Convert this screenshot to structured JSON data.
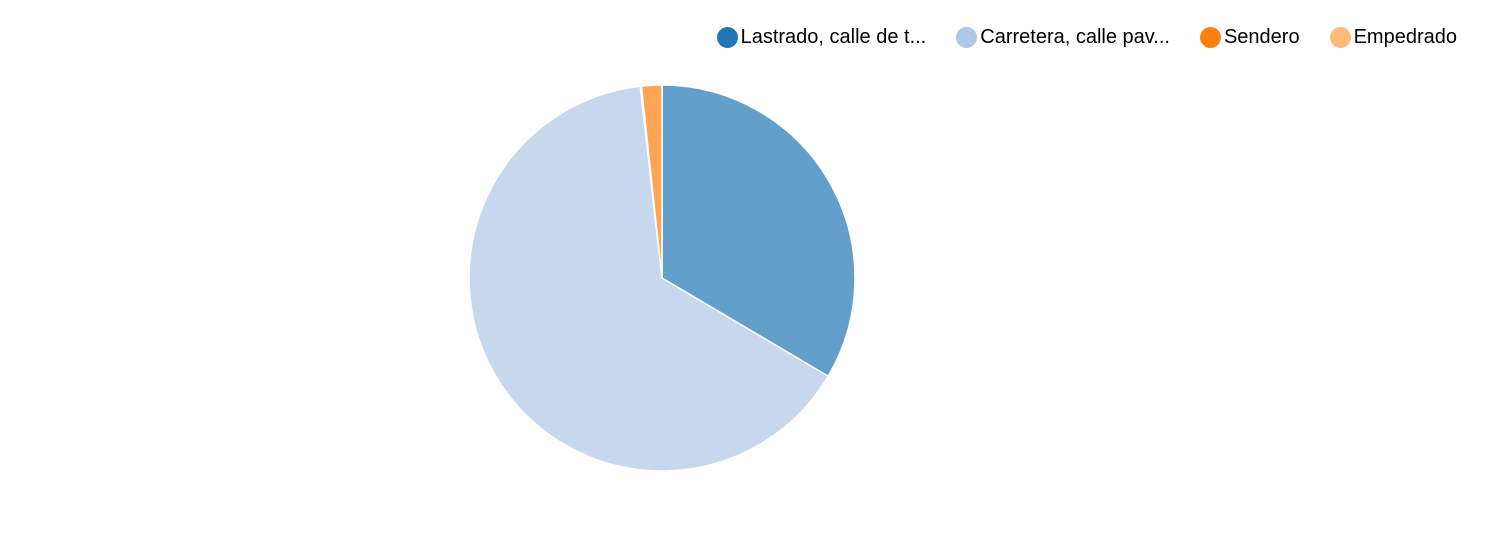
{
  "chart_data": {
    "type": "pie",
    "title": "",
    "legend_position": "top-right",
    "slices": [
      {
        "label": "Lastrado, calle de t...",
        "value": 33.5,
        "legend_color": "#1f77b4",
        "slice_color": "#629fca"
      },
      {
        "label": "Carretera, calle pav...",
        "value": 64.7,
        "legend_color": "#aec7e8",
        "slice_color": "#c6d7ee"
      },
      {
        "label": "Sendero",
        "value": 0.1,
        "legend_color": "#ff7f0e",
        "slice_color": "#ff9f4a"
      },
      {
        "label": "Empedrado",
        "value": 1.7,
        "legend_color": "#ffbb78",
        "slice_color": "#ffa450"
      }
    ]
  }
}
